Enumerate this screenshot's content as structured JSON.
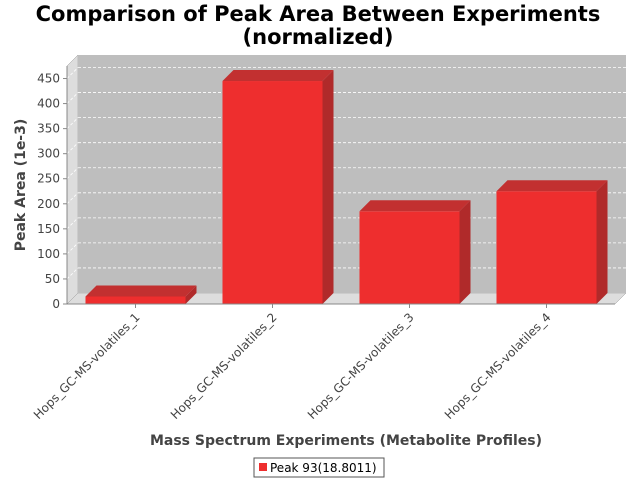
{
  "chart_data": {
    "type": "bar",
    "title_lines": [
      "Comparison of Peak Area Between Experiments",
      "(normalized)"
    ],
    "xlabel": "Mass Spectrum Experiments (Metabolite Profiles)",
    "ylabel": "Peak Area (1e-3)",
    "categories": [
      "Hops_GC-MS-volatiles_1",
      "Hops_GC-MS-volatiles_2",
      "Hops_GC-MS-volatiles_3",
      "Hops_GC-MS-volatiles_4"
    ],
    "series": [
      {
        "name": "Peak 93(18.8011)",
        "values": [
          15,
          445,
          185,
          225
        ],
        "color": "#ee2e2e"
      }
    ],
    "ylim": [
      0,
      475
    ],
    "yticks": [
      "0",
      "50",
      "100",
      "150",
      "200",
      "250",
      "300",
      "350",
      "400",
      "450"
    ],
    "grid": true,
    "legend_position": "bottom-center",
    "plot_background": "#bebebe",
    "wall_color": "#dddddd"
  }
}
